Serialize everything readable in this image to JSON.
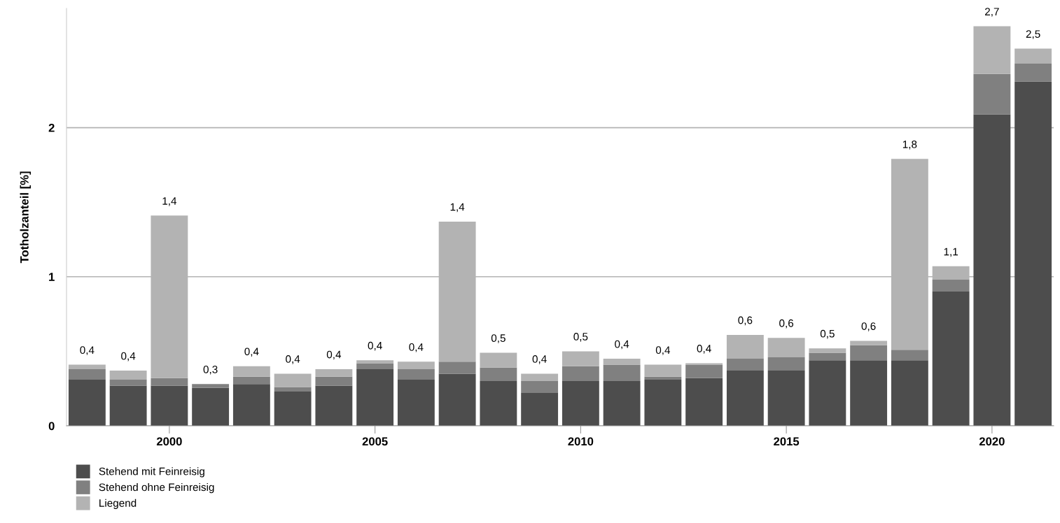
{
  "chart_data": {
    "type": "bar",
    "stacked": true,
    "ylabel": "Totholzanteil [%]",
    "categories": [
      null,
      null,
      "2000",
      null,
      null,
      null,
      null,
      "2005",
      null,
      null,
      null,
      null,
      "2010",
      null,
      null,
      null,
      null,
      "2015",
      null,
      null,
      null,
      null,
      "2020",
      null
    ],
    "series": [
      {
        "name": "Stehend mit Feinreisig",
        "color": "#4d4d4d",
        "values": [
          0.31,
          0.27,
          0.27,
          0.255,
          0.28,
          0.23,
          0.27,
          0.38,
          0.31,
          0.35,
          0.3,
          0.22,
          0.3,
          0.3,
          0.31,
          0.32,
          0.37,
          0.37,
          0.44,
          0.44,
          0.44,
          0.9,
          2.09,
          2.31
        ]
      },
      {
        "name": "Stehend ohne Feinreisig",
        "color": "#808080",
        "values": [
          0.07,
          0.04,
          0.05,
          0.025,
          0.05,
          0.03,
          0.06,
          0.04,
          0.07,
          0.08,
          0.09,
          0.08,
          0.1,
          0.11,
          0.02,
          0.09,
          0.08,
          0.09,
          0.05,
          0.1,
          0.07,
          0.08,
          0.27,
          0.12
        ]
      },
      {
        "name": "Liegend",
        "color": "#b3b3b3",
        "values": [
          0.03,
          0.06,
          1.09,
          0.0,
          0.07,
          0.09,
          0.05,
          0.02,
          0.05,
          0.94,
          0.1,
          0.05,
          0.1,
          0.04,
          0.08,
          0.01,
          0.16,
          0.13,
          0.03,
          0.03,
          1.28,
          0.09,
          0.32,
          0.1
        ]
      }
    ],
    "totals": [
      "0,4",
      "0,4",
      "1,4",
      "0,3",
      "0,4",
      "0,4",
      "0,4",
      "0,4",
      "0,4",
      "1,4",
      "0,5",
      "0,4",
      "0,5",
      "0,4",
      "0,4",
      "0,4",
      "0,6",
      "0,6",
      "0,5",
      "0,6",
      "1,8",
      "1,1",
      "2,7",
      "2,5"
    ],
    "ylim": [
      0,
      2.8
    ],
    "yticks": [
      0,
      1,
      2
    ],
    "grid": "y",
    "legend": "bottom left"
  }
}
